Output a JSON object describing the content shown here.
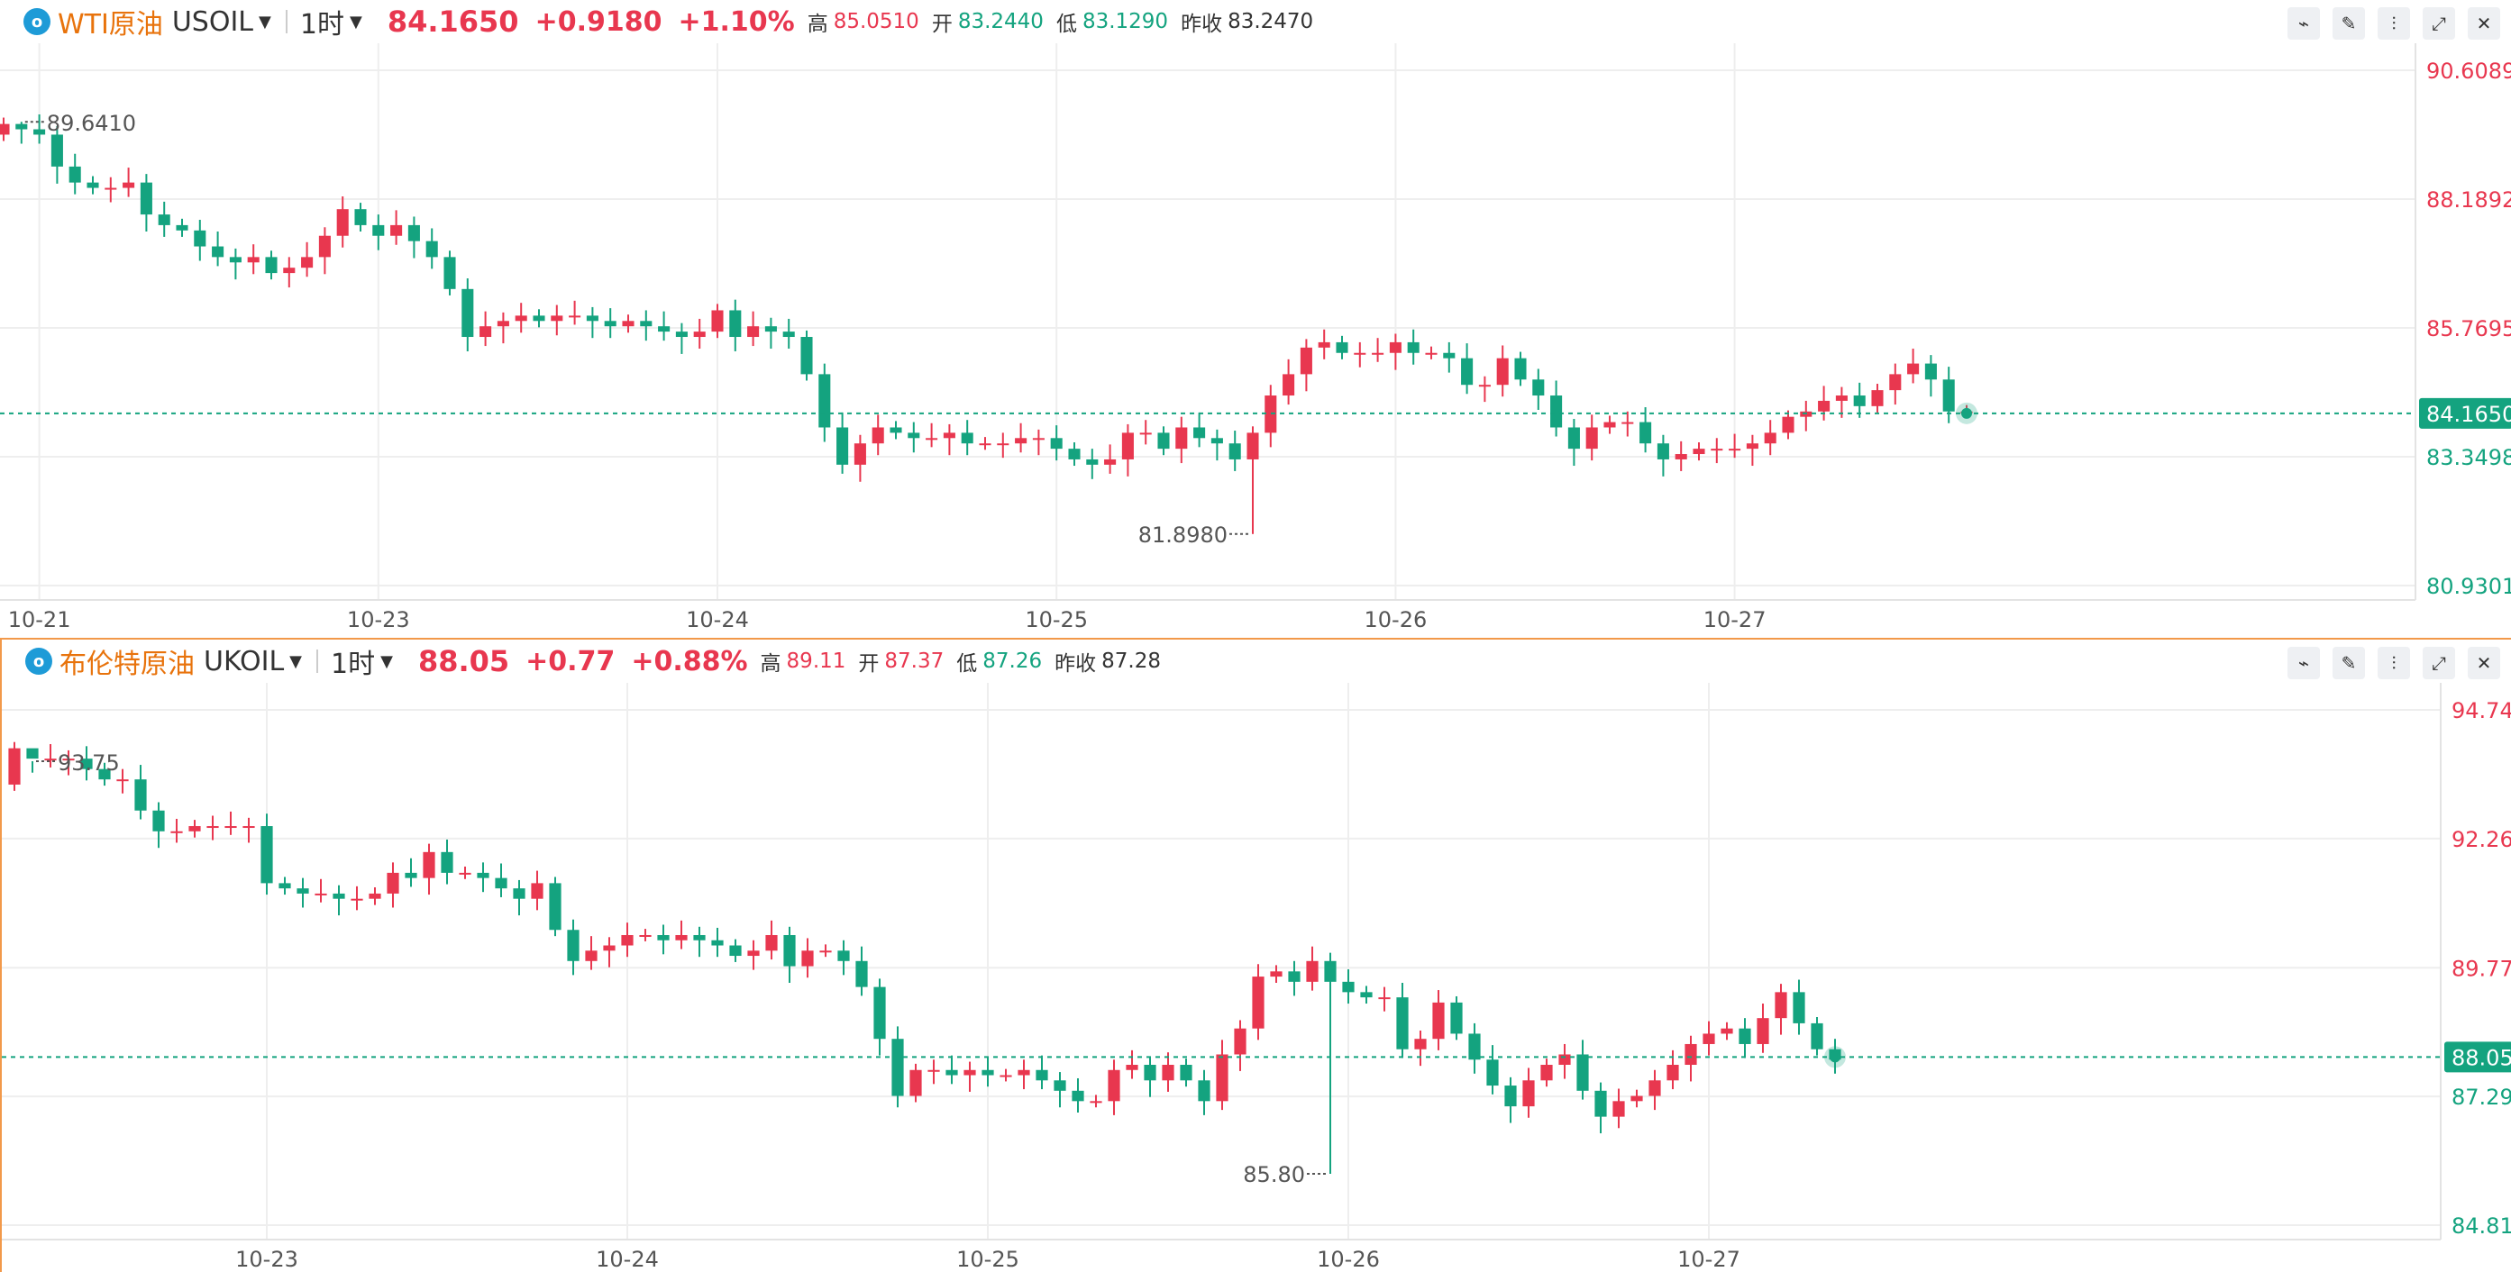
{
  "panels": [
    {
      "symbol_icon": "o",
      "name": "WTI原油",
      "code": "USOIL",
      "period": "1时",
      "price": "84.1650",
      "change": "+0.9180",
      "change_pct": "+1.10%",
      "high_label": "高",
      "high": "85.0510",
      "open_label": "开",
      "open": "83.2440",
      "low_label": "低",
      "low": "83.1290",
      "prev_label": "昨收",
      "prev": "83.2470"
    },
    {
      "symbol_icon": "o",
      "name": "布伦特原油",
      "code": "UKOIL",
      "period": "1时",
      "price": "88.05",
      "change": "+0.77",
      "change_pct": "+0.88%",
      "high_label": "高",
      "high": "89.11",
      "open_label": "开",
      "open": "87.37",
      "low_label": "低",
      "low": "87.26",
      "prev_label": "昨收",
      "prev": "87.28"
    }
  ],
  "toolbar_icons": [
    "indicator-icon",
    "draw-icon",
    "candle-type-icon",
    "expand-icon",
    "close-icon"
  ],
  "colors": {
    "up": "#e8374f",
    "down": "#14a37f",
    "accent": "#e8730c",
    "grid": "#eeeeee"
  },
  "chart_data": [
    {
      "type": "candlestick",
      "symbol": "USOIL",
      "ylim": [
        80.9301,
        90.6089
      ],
      "y_ticks": [
        "90.6089",
        "88.1892",
        "85.7695",
        "83.3498",
        "80.9301"
      ],
      "x_ticks": [
        "10-21",
        "10-23",
        "10-24",
        "10-25",
        "10-26",
        "10-27"
      ],
      "x_tick_index": [
        2,
        21,
        40,
        59,
        78,
        97
      ],
      "last_price": "84.1650",
      "last_value": 84.165,
      "max_label": "89.6410",
      "max_value": 89.641,
      "max_index": 1,
      "min_label": "81.8980",
      "min_value": 81.898,
      "min_index": 70,
      "start": 89.4,
      "closes": [
        89.6,
        89.5,
        89.4,
        88.8,
        88.5,
        88.4,
        88.4,
        88.5,
        87.9,
        87.7,
        87.6,
        87.3,
        87.1,
        87.0,
        87.1,
        86.8,
        86.9,
        87.1,
        87.5,
        88.0,
        87.7,
        87.5,
        87.7,
        87.4,
        87.1,
        86.5,
        85.6,
        85.8,
        85.9,
        86.0,
        85.9,
        86.0,
        86.0,
        85.9,
        85.8,
        85.9,
        85.8,
        85.7,
        85.6,
        85.7,
        86.1,
        85.6,
        85.8,
        85.7,
        85.6,
        84.9,
        83.9,
        83.2,
        83.6,
        83.9,
        83.8,
        83.7,
        83.7,
        83.8,
        83.6,
        83.6,
        83.6,
        83.7,
        83.7,
        83.5,
        83.3,
        83.2,
        83.3,
        83.8,
        83.8,
        83.5,
        83.9,
        83.7,
        83.6,
        83.3,
        83.8,
        84.5,
        84.9,
        85.4,
        85.5,
        85.3,
        85.3,
        85.3,
        85.5,
        85.3,
        85.3,
        85.2,
        84.7,
        84.7,
        85.2,
        84.8,
        84.5,
        83.9,
        83.5,
        83.9,
        84.0,
        84.0,
        83.6,
        83.3,
        83.4,
        83.5,
        83.5,
        83.5,
        83.6,
        83.8,
        84.1,
        84.2,
        84.4,
        84.5,
        84.3,
        84.6,
        84.9,
        85.1,
        84.8,
        84.2,
        84.2
      ]
    },
    {
      "type": "candlestick",
      "symbol": "UKOIL",
      "ylim": [
        84.81,
        94.74
      ],
      "y_ticks": [
        "94.74",
        "92.26",
        "89.77",
        "87.29",
        "84.81"
      ],
      "x_ticks": [
        "10-23",
        "10-24",
        "10-25",
        "10-26",
        "10-27"
      ],
      "x_tick_index": [
        14,
        34,
        54,
        74,
        94
      ],
      "last_price": "88.05",
      "last_value": 88.05,
      "max_label": "93.75",
      "max_value": 93.75,
      "max_index": 1,
      "min_label": "85.80",
      "min_value": 85.8,
      "min_index": 73,
      "start": 93.3,
      "closes": [
        94.0,
        93.8,
        93.8,
        93.8,
        93.6,
        93.4,
        93.4,
        92.8,
        92.4,
        92.4,
        92.5,
        92.5,
        92.5,
        92.5,
        91.4,
        91.3,
        91.2,
        91.2,
        91.1,
        91.1,
        91.2,
        91.6,
        91.5,
        92.0,
        91.6,
        91.6,
        91.5,
        91.3,
        91.1,
        91.4,
        90.5,
        89.9,
        90.1,
        90.2,
        90.4,
        90.4,
        90.3,
        90.4,
        90.3,
        90.2,
        90.0,
        90.1,
        90.4,
        89.8,
        90.1,
        90.1,
        89.9,
        89.4,
        88.4,
        87.3,
        87.8,
        87.8,
        87.7,
        87.8,
        87.7,
        87.7,
        87.8,
        87.6,
        87.4,
        87.2,
        87.2,
        87.8,
        87.9,
        87.6,
        87.9,
        87.6,
        87.2,
        88.1,
        88.6,
        89.6,
        89.7,
        89.5,
        89.9,
        89.5,
        89.3,
        89.2,
        89.2,
        88.2,
        88.4,
        89.1,
        88.5,
        88.0,
        87.5,
        87.1,
        87.6,
        87.9,
        88.1,
        87.4,
        86.9,
        87.2,
        87.3,
        87.6,
        87.9,
        88.3,
        88.5,
        88.6,
        88.3,
        88.8,
        89.3,
        88.7,
        88.2,
        88.0
      ]
    }
  ]
}
